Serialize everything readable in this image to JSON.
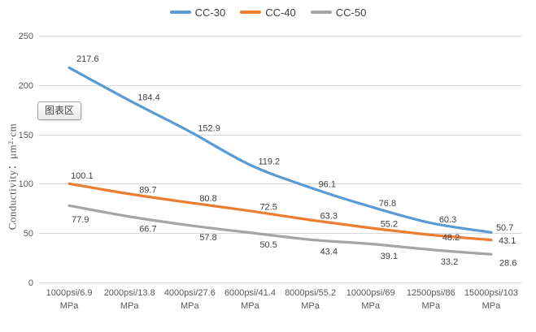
{
  "chart_data": {
    "type": "line",
    "title": "",
    "xlabel": "",
    "ylabel": "Conductivity：μm²·cm",
    "ylim": [
      0,
      250
    ],
    "yticks": [
      0,
      50,
      100,
      150,
      200,
      250
    ],
    "grid": true,
    "smooth_lines": true,
    "data_labels": true,
    "legend_position": "top-center",
    "categories": [
      "1000psi/6.9\nMPa",
      "2000psi/13.8\nMPa",
      "4000psi/27.6\nMPa",
      "6000psi/41.4\nMPa",
      "8000psi/55.2\nMPa",
      "10000psi/69\nMPa",
      "12500psi/86\nMPa",
      "15000psi/103\nMPa"
    ],
    "series": [
      {
        "name": "CC-30",
        "color": "#5B9BD5",
        "values": [
          217.6,
          184.4,
          152.9,
          119.2,
          96.1,
          76.8,
          60.3,
          50.7
        ]
      },
      {
        "name": "CC-40",
        "color": "#ED7D31",
        "values": [
          100.1,
          89.7,
          80.8,
          72.5,
          63.3,
          55.2,
          48.2,
          43.1
        ]
      },
      {
        "name": "CC-50",
        "color": "#A5A5A5",
        "values": [
          77.9,
          66.7,
          57.8,
          50.5,
          43.4,
          39.1,
          33.2,
          28.6
        ]
      }
    ]
  },
  "overlay": {
    "tooltip_label": "图表区"
  },
  "colors": {
    "axis_text": "#595959",
    "data_label_text": "#404040",
    "gridline": "#D9D9D9",
    "background": "#FFFFFF"
  }
}
